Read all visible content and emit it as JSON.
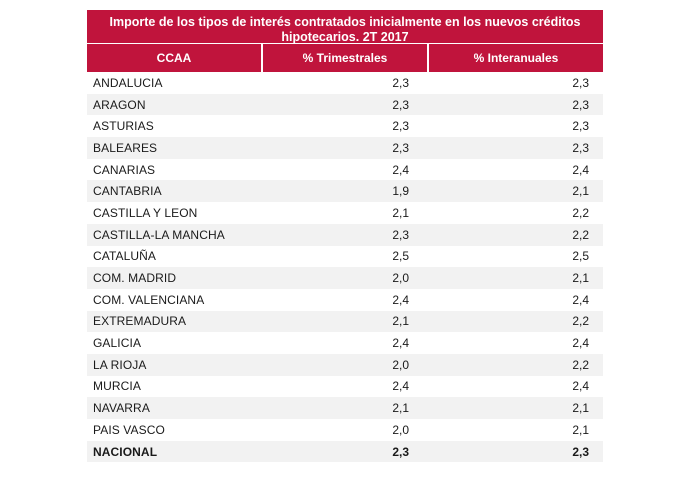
{
  "table": {
    "title": "Importe de los tipos de interés contratados inicialmente en los nuevos créditos hipotecarios.  2T 2017",
    "headers": [
      "CCAA",
      "% Trimestrales",
      "% Interanuales"
    ],
    "rows": [
      {
        "ccaa": "ANDALUCIA",
        "trimestral": "2,3",
        "interanual": "2,3"
      },
      {
        "ccaa": "ARAGON",
        "trimestral": "2,3",
        "interanual": "2,3"
      },
      {
        "ccaa": "ASTURIAS",
        "trimestral": "2,3",
        "interanual": "2,3"
      },
      {
        "ccaa": "BALEARES",
        "trimestral": "2,3",
        "interanual": "2,3"
      },
      {
        "ccaa": "CANARIAS",
        "trimestral": "2,4",
        "interanual": "2,4"
      },
      {
        "ccaa": "CANTABRIA",
        "trimestral": "1,9",
        "interanual": "2,1"
      },
      {
        "ccaa": "CASTILLA Y LEON",
        "trimestral": "2,1",
        "interanual": "2,2"
      },
      {
        "ccaa": "CASTILLA-LA MANCHA",
        "trimestral": "2,3",
        "interanual": "2,2"
      },
      {
        "ccaa": "CATALUÑA",
        "trimestral": "2,5",
        "interanual": "2,5"
      },
      {
        "ccaa": "COM. MADRID",
        "trimestral": "2,0",
        "interanual": "2,1"
      },
      {
        "ccaa": "COM. VALENCIANA",
        "trimestral": "2,4",
        "interanual": "2,4"
      },
      {
        "ccaa": "EXTREMADURA",
        "trimestral": "2,1",
        "interanual": "2,2"
      },
      {
        "ccaa": "GALICIA",
        "trimestral": "2,4",
        "interanual": "2,4"
      },
      {
        "ccaa": "LA RIOJA",
        "trimestral": "2,0",
        "interanual": "2,2"
      },
      {
        "ccaa": "MURCIA",
        "trimestral": "2,4",
        "interanual": "2,4"
      },
      {
        "ccaa": "NAVARRA",
        "trimestral": "2,1",
        "interanual": "2,1"
      },
      {
        "ccaa": "PAIS VASCO",
        "trimestral": "2,0",
        "interanual": "2,1"
      },
      {
        "ccaa": "NACIONAL",
        "trimestral": "2,3",
        "interanual": "2,3"
      }
    ]
  }
}
